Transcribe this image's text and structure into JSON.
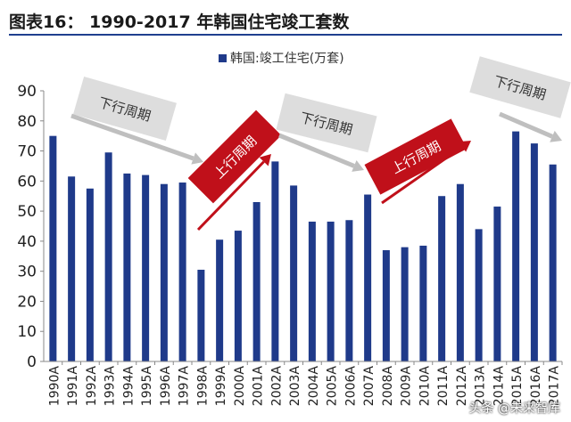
{
  "header": {
    "title": "图表16： 1990-2017 年韩国住宅竣工套数"
  },
  "watermark": "头条 @未来智库",
  "colors": {
    "bar": "#1f3a8a",
    "title_rule": "#1f3f8f",
    "up_band": "#c0101a",
    "down_band": "#d9d9d9",
    "down_arrow": "#bfbfbf"
  },
  "chart_data": {
    "type": "bar",
    "legend": "韩国:竣工住宅(万套)",
    "legend_position": "top-center",
    "categories": [
      "1990A",
      "1991A",
      "1992A",
      "1993A",
      "1994A",
      "1995A",
      "1996A",
      "1997A",
      "1998A",
      "1999A",
      "2000A",
      "2001A",
      "2002A",
      "2003A",
      "2004A",
      "2005A",
      "2006A",
      "2007A",
      "2008A",
      "2009A",
      "2010A",
      "2011A",
      "2012A",
      "2013A",
      "2014A",
      "2015A",
      "2016A",
      "2017A"
    ],
    "values": [
      75,
      61.5,
      57.5,
      69.5,
      62.5,
      62,
      59,
      59.5,
      30.5,
      40.5,
      43.5,
      53,
      66.5,
      58.5,
      46.5,
      46.5,
      47,
      55.5,
      37,
      38,
      38.5,
      55,
      59,
      44,
      51.5,
      76.5,
      72.5,
      65.5
    ],
    "ylim": [
      0,
      90
    ],
    "yticks": [
      0,
      10,
      20,
      30,
      40,
      50,
      60,
      70,
      80,
      90
    ],
    "grid": false,
    "annotations": [
      {
        "label": "下行周期",
        "kind": "down"
      },
      {
        "label": "上行周期",
        "kind": "up"
      },
      {
        "label": "下行周期",
        "kind": "down"
      },
      {
        "label": "上行周期",
        "kind": "up"
      },
      {
        "label": "下行周期",
        "kind": "down"
      }
    ]
  }
}
